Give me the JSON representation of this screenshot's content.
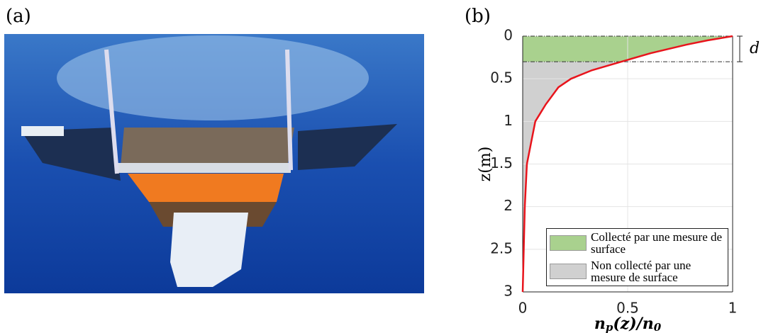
{
  "panel_a_label": "(a)",
  "chart_data": {
    "type": "line",
    "panel_label": "(b)",
    "xlabel": "n_p(z)/n_0",
    "ylabel": "z(m)",
    "x": [
      1,
      0.88,
      0.78,
      0.61,
      0.47,
      0.33,
      0.23,
      0.17,
      0.11,
      0.06,
      0.04,
      0.02,
      0.01,
      0.005,
      0
    ],
    "curve": {
      "color": "#e8141c",
      "values": [
        0,
        0.05,
        0.1,
        0.2,
        0.3,
        0.4,
        0.5,
        0.6,
        0.8,
        1,
        1.25,
        1.5,
        2,
        2.5,
        3
      ]
    },
    "surface_depth": 0.3,
    "depth_label": "d",
    "legend": [
      {
        "name": "Collecté par une mesure de surface",
        "color": "#a9d18e"
      },
      {
        "name": "Non collecté par une mesure de surface",
        "color": "#d0d0d0"
      }
    ],
    "xlim": [
      0,
      1
    ],
    "xticks": [
      0,
      0.5,
      1
    ],
    "ylim": [
      0,
      3
    ],
    "yticks": [
      0,
      0.5,
      1,
      1.5,
      2,
      2.5,
      3
    ],
    "y_inverted": true,
    "grid": true
  }
}
